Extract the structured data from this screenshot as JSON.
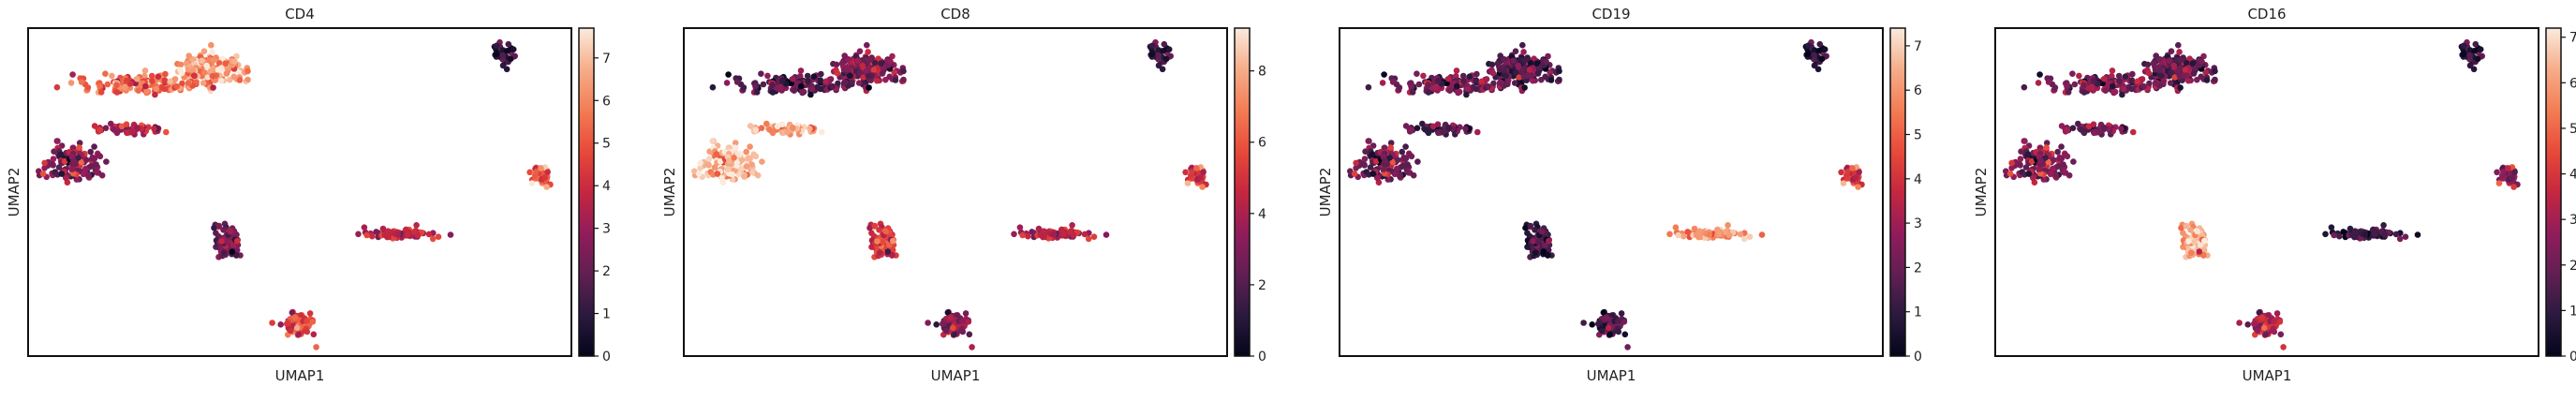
{
  "figure": {
    "background": "#ffffff",
    "frame_color": "#111111"
  },
  "colormap": {
    "name": "rocket",
    "stops": [
      "#03051a",
      "#2b1a3f",
      "#611f53",
      "#921c5b",
      "#c5273f",
      "#e84a3a",
      "#f37d54",
      "#f6ad8a",
      "#faebdd"
    ]
  },
  "chart_data": [
    {
      "type": "scatter",
      "title": "CD4",
      "xlabel": "UMAP1",
      "ylabel": "UMAP2",
      "colorbar": {
        "range": [
          0,
          7.7
        ],
        "ticks": [
          "0",
          "1",
          "2",
          "3",
          "4",
          "5",
          "6",
          "7"
        ]
      },
      "clusters": [
        {
          "name": "c1",
          "center": [
            3.0,
            8.6
          ],
          "spread": [
            0.6,
            0.45
          ],
          "n": 190,
          "color_level": 0.82
        },
        {
          "name": "c2",
          "center": [
            1.6,
            8.2
          ],
          "spread": [
            1.3,
            0.3
          ],
          "n": 140,
          "color_level": 0.68
        },
        {
          "name": "c3",
          "center": [
            0.3,
            5.9
          ],
          "spread": [
            0.55,
            0.55
          ],
          "n": 140,
          "color_level": 0.35
        },
        {
          "name": "c4",
          "center": [
            1.4,
            6.9
          ],
          "spread": [
            0.7,
            0.15
          ],
          "n": 60,
          "color_level": 0.45
        },
        {
          "name": "c5",
          "center": [
            8.7,
            9.0
          ],
          "spread": [
            0.18,
            0.35
          ],
          "n": 45,
          "color_level": 0.12
        },
        {
          "name": "c6",
          "center": [
            9.4,
            5.6
          ],
          "spread": [
            0.2,
            0.3
          ],
          "n": 40,
          "color_level": 0.65
        },
        {
          "name": "c7",
          "center": [
            3.3,
            3.7
          ],
          "spread": [
            0.22,
            0.5
          ],
          "n": 95,
          "color_level": 0.28
        },
        {
          "name": "c8",
          "center": [
            6.6,
            3.9
          ],
          "spread": [
            0.7,
            0.15
          ],
          "n": 80,
          "color_level": 0.52
        },
        {
          "name": "c9",
          "center": [
            4.7,
            1.3
          ],
          "spread": [
            0.35,
            0.4
          ],
          "n": 70,
          "color_level": 0.6
        }
      ]
    },
    {
      "type": "scatter",
      "title": "CD8",
      "xlabel": "UMAP1",
      "ylabel": "UMAP2",
      "colorbar": {
        "range": [
          0,
          9.2
        ],
        "ticks": [
          "0",
          "2",
          "4",
          "6",
          "8"
        ]
      },
      "clusters": [
        {
          "name": "c1",
          "center": [
            3.0,
            8.6
          ],
          "spread": [
            0.6,
            0.45
          ],
          "n": 190,
          "color_level": 0.32
        },
        {
          "name": "c2",
          "center": [
            1.6,
            8.2
          ],
          "spread": [
            1.3,
            0.3
          ],
          "n": 140,
          "color_level": 0.22
        },
        {
          "name": "c3",
          "center": [
            0.3,
            5.9
          ],
          "spread": [
            0.55,
            0.55
          ],
          "n": 140,
          "color_level": 0.92
        },
        {
          "name": "c4",
          "center": [
            1.4,
            6.9
          ],
          "spread": [
            0.7,
            0.15
          ],
          "n": 60,
          "color_level": 0.85
        },
        {
          "name": "c5",
          "center": [
            8.7,
            9.0
          ],
          "spread": [
            0.18,
            0.35
          ],
          "n": 45,
          "color_level": 0.14
        },
        {
          "name": "c6",
          "center": [
            9.4,
            5.6
          ],
          "spread": [
            0.2,
            0.3
          ],
          "n": 40,
          "color_level": 0.55
        },
        {
          "name": "c7",
          "center": [
            3.3,
            3.7
          ],
          "spread": [
            0.22,
            0.5
          ],
          "n": 95,
          "color_level": 0.55
        },
        {
          "name": "c8",
          "center": [
            6.6,
            3.9
          ],
          "spread": [
            0.7,
            0.15
          ],
          "n": 80,
          "color_level": 0.5
        },
        {
          "name": "c9",
          "center": [
            4.7,
            1.3
          ],
          "spread": [
            0.35,
            0.4
          ],
          "n": 70,
          "color_level": 0.35
        }
      ]
    },
    {
      "type": "scatter",
      "title": "CD19",
      "xlabel": "UMAP1",
      "ylabel": "UMAP2",
      "colorbar": {
        "range": [
          0,
          7.4
        ],
        "ticks": [
          "0",
          "1",
          "2",
          "3",
          "4",
          "5",
          "6",
          "7"
        ]
      },
      "clusters": [
        {
          "name": "c1",
          "center": [
            3.0,
            8.6
          ],
          "spread": [
            0.6,
            0.45
          ],
          "n": 190,
          "color_level": 0.2
        },
        {
          "name": "c2",
          "center": [
            1.6,
            8.2
          ],
          "spread": [
            1.3,
            0.3
          ],
          "n": 140,
          "color_level": 0.28
        },
        {
          "name": "c3",
          "center": [
            0.3,
            5.9
          ],
          "spread": [
            0.55,
            0.55
          ],
          "n": 140,
          "color_level": 0.3
        },
        {
          "name": "c4",
          "center": [
            1.4,
            6.9
          ],
          "spread": [
            0.7,
            0.15
          ],
          "n": 60,
          "color_level": 0.22
        },
        {
          "name": "c5",
          "center": [
            8.7,
            9.0
          ],
          "spread": [
            0.18,
            0.35
          ],
          "n": 45,
          "color_level": 0.1
        },
        {
          "name": "c6",
          "center": [
            9.4,
            5.6
          ],
          "spread": [
            0.2,
            0.3
          ],
          "n": 40,
          "color_level": 0.55
        },
        {
          "name": "c7",
          "center": [
            3.3,
            3.7
          ],
          "spread": [
            0.22,
            0.5
          ],
          "n": 95,
          "color_level": 0.15
        },
        {
          "name": "c8",
          "center": [
            6.6,
            3.9
          ],
          "spread": [
            0.7,
            0.15
          ],
          "n": 80,
          "color_level": 0.85
        },
        {
          "name": "c9",
          "center": [
            4.7,
            1.3
          ],
          "spread": [
            0.35,
            0.4
          ],
          "n": 70,
          "color_level": 0.2
        }
      ]
    },
    {
      "type": "scatter",
      "title": "CD16",
      "xlabel": "UMAP1",
      "ylabel": "UMAP2",
      "colorbar": {
        "range": [
          0,
          7.2
        ],
        "ticks": [
          "0",
          "1",
          "2",
          "3",
          "4",
          "5",
          "6",
          "7"
        ]
      },
      "clusters": [
        {
          "name": "c1",
          "center": [
            3.0,
            8.6
          ],
          "spread": [
            0.6,
            0.45
          ],
          "n": 190,
          "color_level": 0.25
        },
        {
          "name": "c2",
          "center": [
            1.6,
            8.2
          ],
          "spread": [
            1.3,
            0.3
          ],
          "n": 140,
          "color_level": 0.3
        },
        {
          "name": "c3",
          "center": [
            0.3,
            5.9
          ],
          "spread": [
            0.55,
            0.55
          ],
          "n": 140,
          "color_level": 0.35
        },
        {
          "name": "c4",
          "center": [
            1.4,
            6.9
          ],
          "spread": [
            0.7,
            0.15
          ],
          "n": 60,
          "color_level": 0.3
        },
        {
          "name": "c5",
          "center": [
            8.7,
            9.0
          ],
          "spread": [
            0.18,
            0.35
          ],
          "n": 45,
          "color_level": 0.12
        },
        {
          "name": "c6",
          "center": [
            9.4,
            5.6
          ],
          "spread": [
            0.2,
            0.3
          ],
          "n": 40,
          "color_level": 0.35
        },
        {
          "name": "c7",
          "center": [
            3.3,
            3.7
          ],
          "spread": [
            0.22,
            0.5
          ],
          "n": 95,
          "color_level": 0.85
        },
        {
          "name": "c8",
          "center": [
            6.6,
            3.9
          ],
          "spread": [
            0.7,
            0.15
          ],
          "n": 80,
          "color_level": 0.2
        },
        {
          "name": "c9",
          "center": [
            4.7,
            1.3
          ],
          "spread": [
            0.35,
            0.4
          ],
          "n": 70,
          "color_level": 0.45
        }
      ]
    }
  ]
}
